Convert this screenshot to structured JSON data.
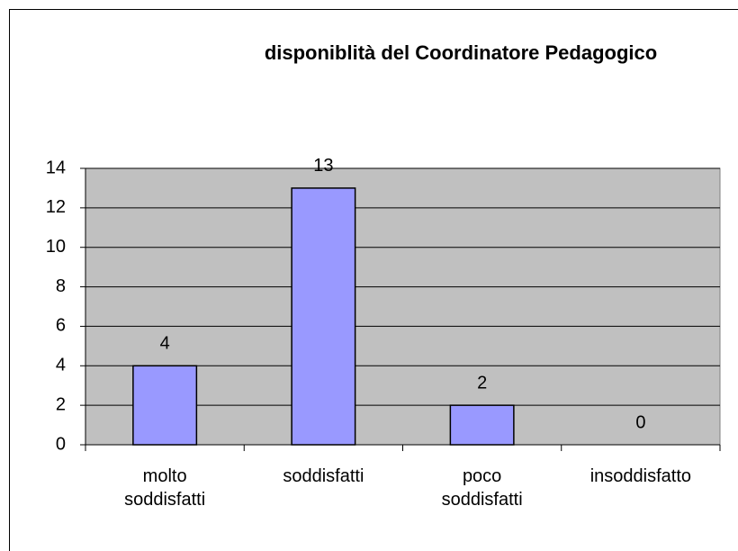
{
  "chart_data": {
    "type": "bar",
    "title": "disponiblità del Coordinatore Pedagogico",
    "categories": [
      "molto soddisfatti",
      "soddisfatti",
      "poco soddisfatti",
      "insoddisfatto"
    ],
    "values": [
      4,
      13,
      2,
      0
    ],
    "color": "#9999ff",
    "plot_background": "#c0c0c0",
    "ylim": [
      0,
      14
    ],
    "yticks": [
      0,
      2,
      4,
      6,
      8,
      10,
      12,
      14
    ],
    "grid": true
  }
}
